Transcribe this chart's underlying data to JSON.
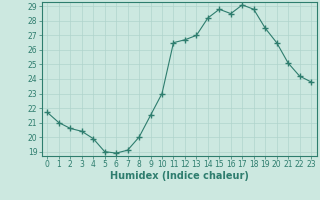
{
  "x": [
    0,
    1,
    2,
    3,
    4,
    5,
    6,
    7,
    8,
    9,
    10,
    11,
    12,
    13,
    14,
    15,
    16,
    17,
    18,
    19,
    20,
    21,
    22,
    23
  ],
  "y": [
    21.7,
    21.0,
    20.6,
    20.4,
    19.9,
    19.0,
    18.9,
    19.1,
    20.0,
    21.5,
    23.0,
    26.5,
    26.7,
    27.0,
    28.2,
    28.8,
    28.5,
    29.1,
    28.8,
    27.5,
    26.5,
    25.1,
    24.2,
    23.8
  ],
  "line_color": "#2e7d6e",
  "marker": "+",
  "marker_color": "#2e7d6e",
  "bg_color": "#cce8e0",
  "grid_color": "#b0d4cc",
  "xlabel": "Humidex (Indice chaleur)",
  "ylabel": "",
  "title": "",
  "xlim": [
    -0.5,
    23.5
  ],
  "ylim_min": 18.7,
  "ylim_max": 29.3,
  "yticks": [
    19,
    20,
    21,
    22,
    23,
    24,
    25,
    26,
    27,
    28,
    29
  ],
  "xticks": [
    0,
    1,
    2,
    3,
    4,
    5,
    6,
    7,
    8,
    9,
    10,
    11,
    12,
    13,
    14,
    15,
    16,
    17,
    18,
    19,
    20,
    21,
    22,
    23
  ],
  "tick_color": "#2e7d6e",
  "label_color": "#2e7d6e",
  "axis_color": "#2e7d6e",
  "tick_fontsize": 5.5,
  "xlabel_fontsize": 7.0
}
